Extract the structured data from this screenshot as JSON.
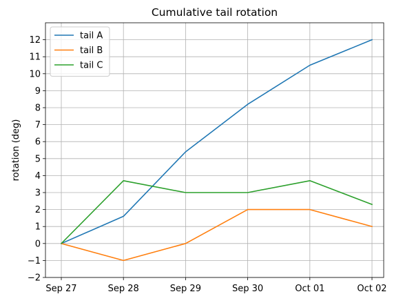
{
  "chart_data": {
    "type": "line",
    "title": "Cumulative tail rotation",
    "xlabel": "",
    "ylabel": "rotation (deg)",
    "categories": [
      "Sep 27",
      "Sep 28",
      "Sep 29",
      "Sep 30",
      "Oct 01",
      "Oct 02"
    ],
    "yticks": [
      "−2",
      "−1",
      "0",
      "1",
      "2",
      "3",
      "4",
      "5",
      "6",
      "7",
      "8",
      "9",
      "10",
      "11",
      "12"
    ],
    "ylim": [
      -2,
      13
    ],
    "grid": true,
    "legend_position": "top-left",
    "series": [
      {
        "name": "tail A",
        "color": "#1f77b4",
        "values": [
          0,
          1.6,
          5.4,
          8.2,
          10.5,
          12.0
        ]
      },
      {
        "name": "tail B",
        "color": "#ff7f0e",
        "values": [
          0,
          -1.0,
          0,
          2.0,
          2.0,
          1.0
        ]
      },
      {
        "name": "tail C",
        "color": "#2ca02c",
        "values": [
          0,
          3.7,
          3.0,
          3.0,
          3.7,
          2.3
        ]
      }
    ]
  }
}
